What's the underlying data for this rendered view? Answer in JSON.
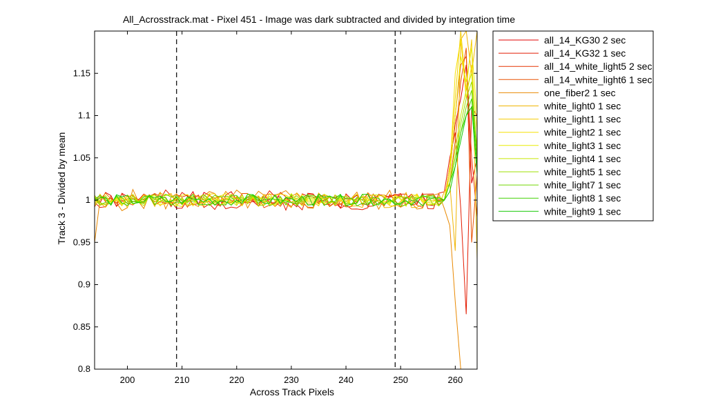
{
  "chart_data": {
    "type": "line",
    "title": "All_Acrosstrack.mat - Pixel 451 - Image was dark subtracted and divided by integration time",
    "xlabel": "Across Track Pixels",
    "ylabel": "Track 3 - Divided by mean",
    "xlim": [
      194,
      264
    ],
    "ylim": [
      0.8,
      1.2
    ],
    "xticks": [
      200,
      210,
      220,
      230,
      240,
      250,
      260
    ],
    "yticks": [
      0.8,
      0.85,
      0.9,
      0.95,
      1,
      1.05,
      1.1,
      1.15
    ],
    "ytick_labels": [
      "0.8",
      "0.85",
      "0.9",
      "0.95",
      "1",
      "1.05",
      "1.1",
      "1.15"
    ],
    "vlines": [
      209,
      249
    ],
    "grid": false,
    "legend_position": "outside-right",
    "series": [
      {
        "name": "all_14_KG30 2 sec",
        "color": "#e00000",
        "seed": 1,
        "amp": 0.01,
        "tail": [
          1.0,
          1.04,
          1.09,
          1.12,
          1.16,
          1.02,
          1.05
        ]
      },
      {
        "name": "all_14_KG32 1 sec",
        "color": "#e31a00",
        "seed": 2,
        "amp": 0.012,
        "tail": [
          1.01,
          1.05,
          1.08,
          0.99,
          0.865,
          1.11,
          1.1
        ]
      },
      {
        "name": "all_14_white_light5 2 sec",
        "color": "#e63400",
        "seed": 3,
        "amp": 0.008,
        "tail": [
          1.0,
          1.03,
          1.1,
          1.16,
          1.17,
          1.05,
          0.98
        ]
      },
      {
        "name": "all_14_white_light6 1 sec",
        "color": "#e95000",
        "seed": 4,
        "amp": 0.009,
        "tail": [
          1.0,
          1.02,
          1.07,
          1.14,
          1.18,
          0.95,
          1.03
        ]
      },
      {
        "name": "one_fiber2 1 sec",
        "color": "#e98800",
        "seed": 5,
        "amp": 0.013,
        "tail": [
          0.99,
          0.97,
          0.88,
          0.8,
          0.8,
          0.8,
          0.8
        ]
      },
      {
        "name": "white_light0 1 sec",
        "color": "#f0b400",
        "seed": 6,
        "amp": 0.009,
        "tail": [
          1.01,
          1.02,
          0.94,
          1.19,
          1.2,
          1.15,
          1.2
        ]
      },
      {
        "name": "white_light1 1 sec",
        "color": "#f5cc00",
        "seed": 7,
        "amp": 0.008,
        "tail": [
          1.0,
          1.04,
          1.12,
          1.2,
          1.13,
          1.19,
          0.93
        ]
      },
      {
        "name": "white_light2 1 sec",
        "color": "#f5e000",
        "seed": 8,
        "amp": 0.008,
        "tail": [
          1.0,
          1.03,
          1.15,
          1.19,
          1.12,
          1.16,
          1.08
        ]
      },
      {
        "name": "white_light3 1 sec",
        "color": "#e8ec00",
        "seed": 9,
        "amp": 0.008,
        "tail": [
          1.0,
          1.03,
          1.1,
          1.17,
          1.14,
          1.18,
          1.1
        ]
      },
      {
        "name": "white_light4 1 sec",
        "color": "#c8e600",
        "seed": 10,
        "amp": 0.007,
        "tail": [
          1.0,
          1.02,
          1.06,
          1.1,
          1.13,
          1.15,
          1.05
        ]
      },
      {
        "name": "white_light5 1 sec",
        "color": "#9ee000",
        "seed": 11,
        "amp": 0.007,
        "tail": [
          1.0,
          1.02,
          1.05,
          1.09,
          1.12,
          1.14,
          1.06
        ]
      },
      {
        "name": "white_light7 1 sec",
        "color": "#70d800",
        "seed": 12,
        "amp": 0.007,
        "tail": [
          1.0,
          1.02,
          1.05,
          1.08,
          1.11,
          1.13,
          1.05
        ]
      },
      {
        "name": "white_light8 1 sec",
        "color": "#40d000",
        "seed": 13,
        "amp": 0.007,
        "tail": [
          1.0,
          1.02,
          1.04,
          1.08,
          1.1,
          1.12,
          1.04
        ]
      },
      {
        "name": "white_light9 1 sec",
        "color": "#10c800",
        "seed": 14,
        "amp": 0.007,
        "tail": [
          1.0,
          1.01,
          1.04,
          1.07,
          1.1,
          1.11,
          1.03
        ]
      }
    ]
  }
}
